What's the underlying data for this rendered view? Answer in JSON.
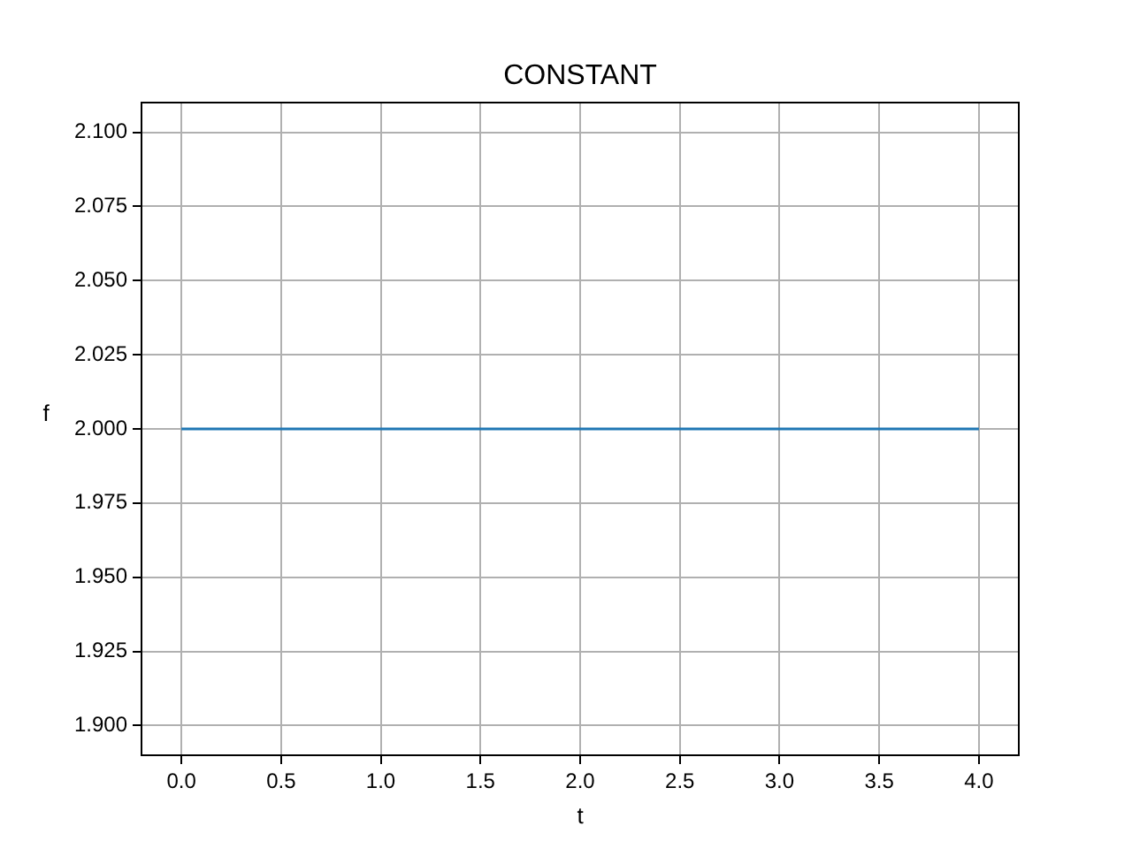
{
  "chart_data": {
    "type": "line",
    "title": "CONSTANT",
    "xlabel": "t",
    "ylabel": "f",
    "x": [
      0,
      4
    ],
    "series": [
      {
        "color": "#1f77b4",
        "values": [
          2,
          2
        ]
      }
    ],
    "xlim": [
      -0.2,
      4.2
    ],
    "xticks": [
      {
        "value": 0,
        "label": "0.0"
      },
      {
        "value": 0.5,
        "label": "0.5"
      },
      {
        "value": 1,
        "label": "1.0"
      },
      {
        "value": 1.5,
        "label": "1.5"
      },
      {
        "value": 2,
        "label": "2.0"
      },
      {
        "value": 2.5,
        "label": "2.5"
      },
      {
        "value": 3,
        "label": "3.0"
      },
      {
        "value": 3.5,
        "label": "3.5"
      },
      {
        "value": 4,
        "label": "4.0"
      }
    ],
    "ylim": [
      1.89,
      2.11
    ],
    "yticks": [
      {
        "value": 1.9,
        "label": "1.900"
      },
      {
        "value": 1.925,
        "label": "1.925"
      },
      {
        "value": 1.95,
        "label": "1.950"
      },
      {
        "value": 1.975,
        "label": "1.975"
      },
      {
        "value": 2,
        "label": "2.000"
      },
      {
        "value": 2.025,
        "label": "2.025"
      },
      {
        "value": 2.05,
        "label": "2.050"
      },
      {
        "value": 2.075,
        "label": "2.075"
      },
      {
        "value": 2.1,
        "label": "2.100"
      }
    ],
    "grid": true,
    "legend": false
  }
}
